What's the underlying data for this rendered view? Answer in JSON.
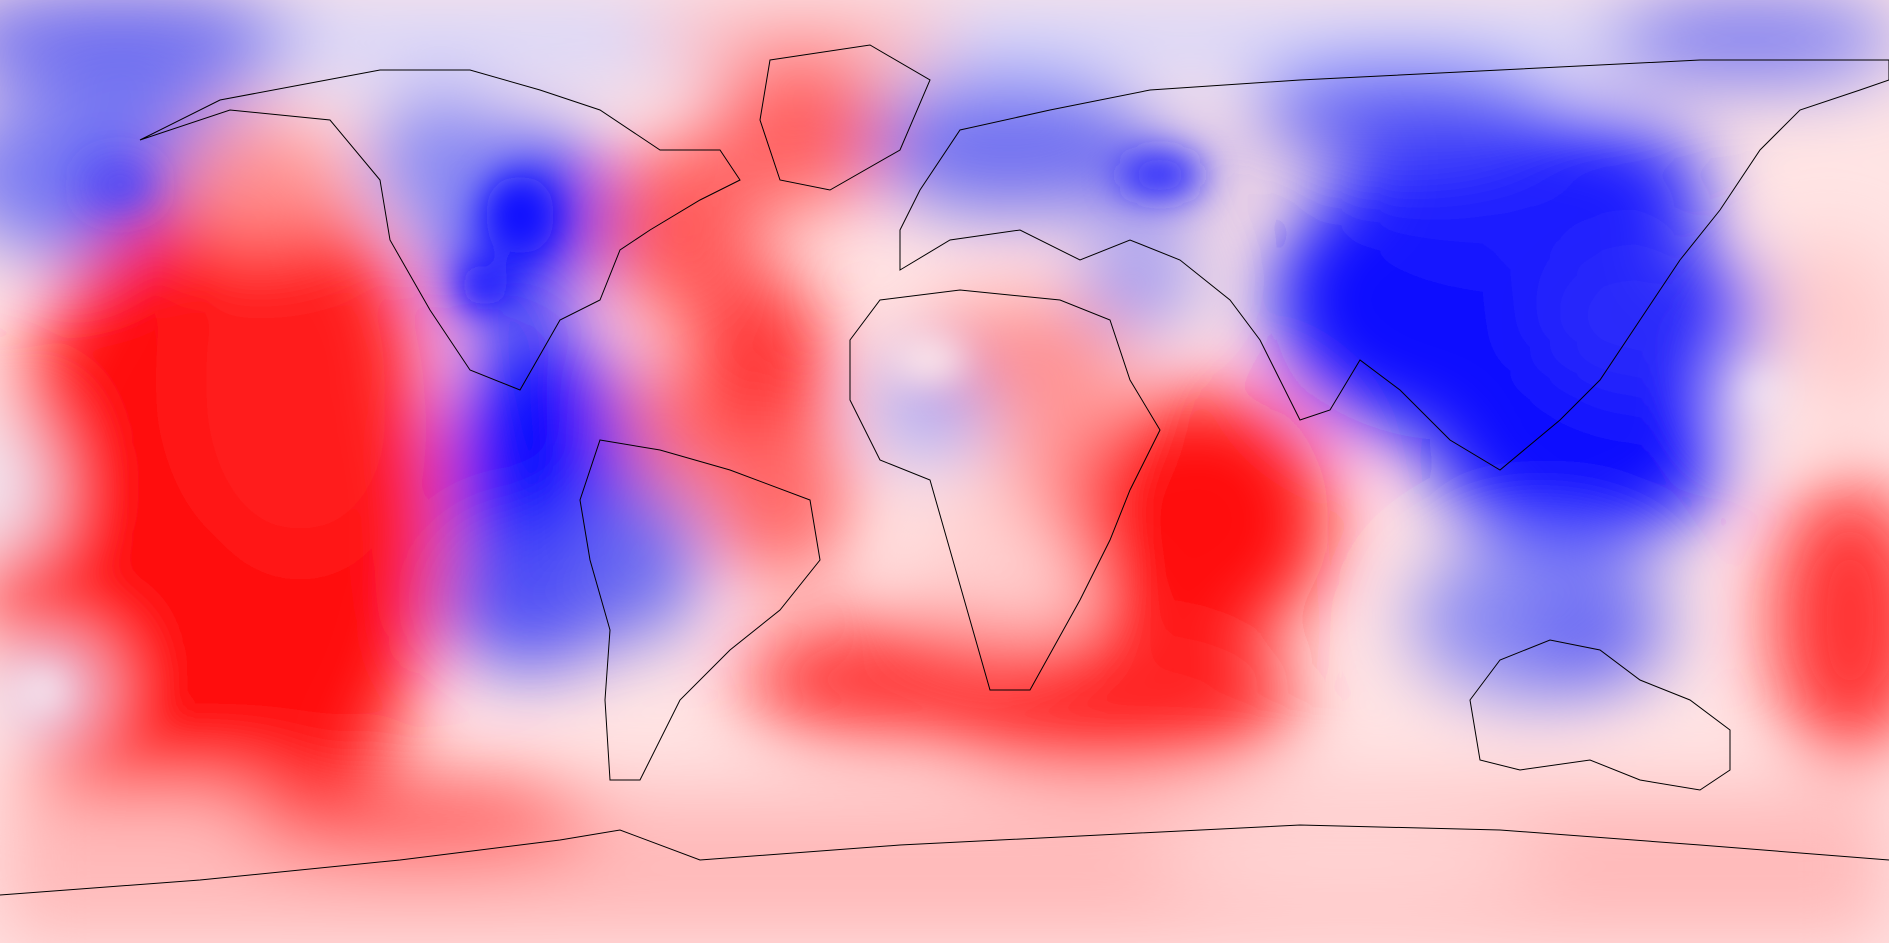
{
  "map": {
    "projection": "equirectangular",
    "colormap": "blue-white-red",
    "colors": {
      "strong_negative": "#0a0aff",
      "negative": "#6b6bf0",
      "weak_negative": "#c8c8fa",
      "neutral": "#fff2f2",
      "weak_positive": "#ffb4b4",
      "positive": "#ff6666",
      "strong_positive": "#ff0d0d",
      "coastline": "#000000"
    }
  }
}
